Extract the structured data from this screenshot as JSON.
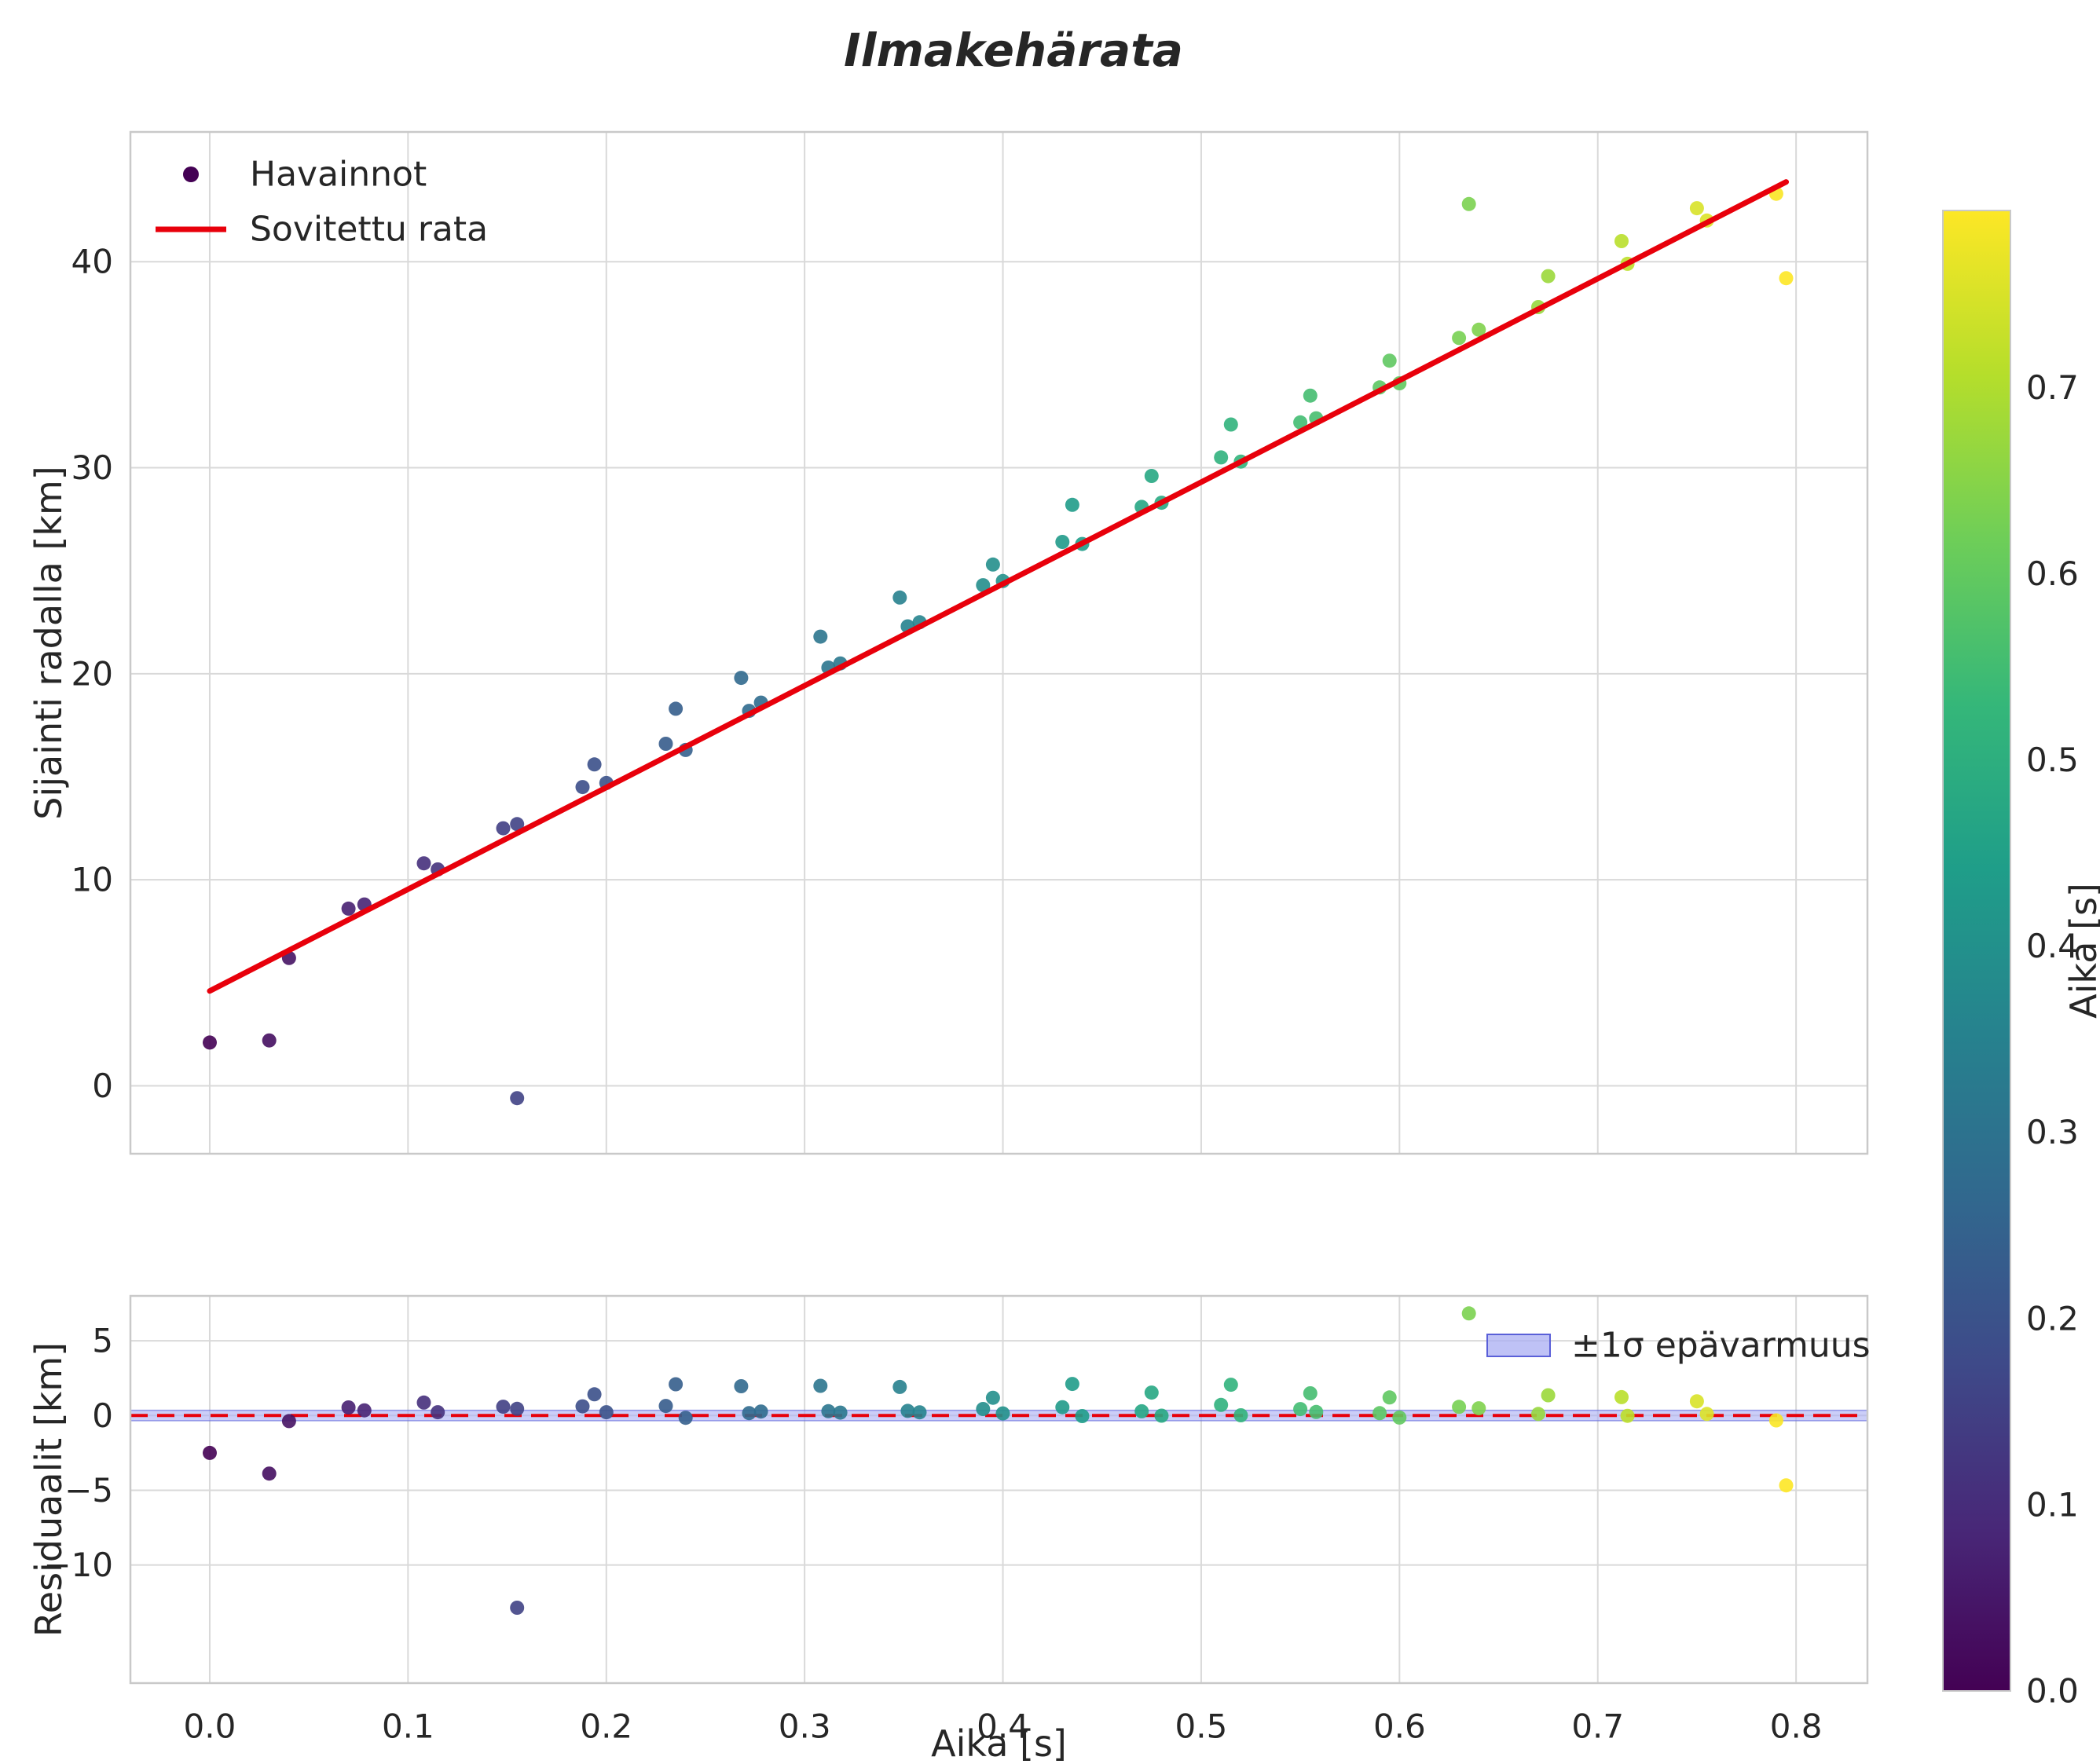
{
  "figure": {
    "title": "Ilmakehärata",
    "background": "#ffffff",
    "colorbar": {
      "label": "Aika [s]",
      "ticks": [
        0.0,
        0.1,
        0.2,
        0.3,
        0.4,
        0.5,
        0.6,
        0.7
      ],
      "vmin": 0.0,
      "vmax": 0.795,
      "colormap": "viridis"
    }
  },
  "chart_data": [
    {
      "type": "scatter",
      "title": "Ilmakehärata",
      "xlabel": "",
      "ylabel": "Sijainti radalla [km]",
      "xlim": [
        -0.04,
        0.836
      ],
      "ylim": [
        -3.3,
        46.3
      ],
      "xticks": [
        0.0,
        0.1,
        0.2,
        0.3,
        0.4,
        0.5,
        0.6,
        0.7,
        0.8
      ],
      "show_xtick_labels": false,
      "yticks": [
        0,
        10,
        20,
        30,
        40
      ],
      "grid": true,
      "legend": {
        "position": "upper left",
        "entries": [
          {
            "type": "marker",
            "label": "Havainnot",
            "color": "#440154"
          },
          {
            "type": "line",
            "label": "Sovitettu rata",
            "color": "#e8000b"
          }
        ]
      },
      "series": [
        {
          "name": "Havainnot",
          "marker": "o",
          "colormap": "viridis",
          "color_by": "x",
          "x": [
            0.0,
            0.03,
            0.04,
            0.07,
            0.078,
            0.108,
            0.115,
            0.148,
            0.155,
            0.155,
            0.188,
            0.194,
            0.2,
            0.23,
            0.235,
            0.24,
            0.268,
            0.272,
            0.278,
            0.308,
            0.312,
            0.318,
            0.348,
            0.352,
            0.358,
            0.39,
            0.395,
            0.4,
            0.43,
            0.435,
            0.44,
            0.47,
            0.475,
            0.48,
            0.51,
            0.515,
            0.52,
            0.55,
            0.555,
            0.558,
            0.59,
            0.595,
            0.6,
            0.63,
            0.635,
            0.64,
            0.67,
            0.675,
            0.712,
            0.715,
            0.75,
            0.755,
            0.79,
            0.795
          ],
          "y": [
            2.1,
            2.2,
            6.2,
            8.6,
            8.8,
            10.8,
            10.5,
            12.5,
            12.7,
            -0.6,
            14.5,
            15.6,
            14.7,
            16.6,
            18.3,
            16.3,
            19.8,
            18.2,
            18.6,
            21.8,
            20.3,
            20.5,
            23.7,
            22.3,
            22.5,
            24.3,
            25.3,
            24.5,
            26.4,
            28.2,
            26.3,
            28.1,
            29.6,
            28.3,
            30.5,
            32.1,
            30.3,
            32.2,
            33.5,
            32.4,
            33.9,
            35.2,
            34.1,
            36.3,
            42.8,
            36.7,
            37.8,
            39.3,
            41.0,
            39.9,
            42.6,
            42.0,
            43.3,
            39.2
          ]
        },
        {
          "name": "Sovitettu rata",
          "type": "line",
          "color": "#e8000b",
          "fit": {
            "slope": 49.4,
            "intercept": 4.6,
            "x_range": [
              0.0,
              0.795
            ]
          }
        }
      ]
    },
    {
      "type": "scatter",
      "role": "residuals",
      "xlabel": "Aika [s]",
      "ylabel": "Residuaalit [km]",
      "xlim": [
        -0.04,
        0.836
      ],
      "ylim": [
        -17.9,
        8.0
      ],
      "xticks": [
        0.0,
        0.1,
        0.2,
        0.3,
        0.4,
        0.5,
        0.6,
        0.7,
        0.8
      ],
      "yticks": [
        -10,
        -5,
        0,
        5
      ],
      "grid": true,
      "zero_line": {
        "color": "#e8000b",
        "dashed": true
      },
      "band": {
        "halfwidth": 0.35,
        "fill": "#a9aef3",
        "edge": "#5a60d8",
        "label": "±1σ epävarmuus"
      },
      "legend": {
        "position": "upper right"
      }
    }
  ]
}
